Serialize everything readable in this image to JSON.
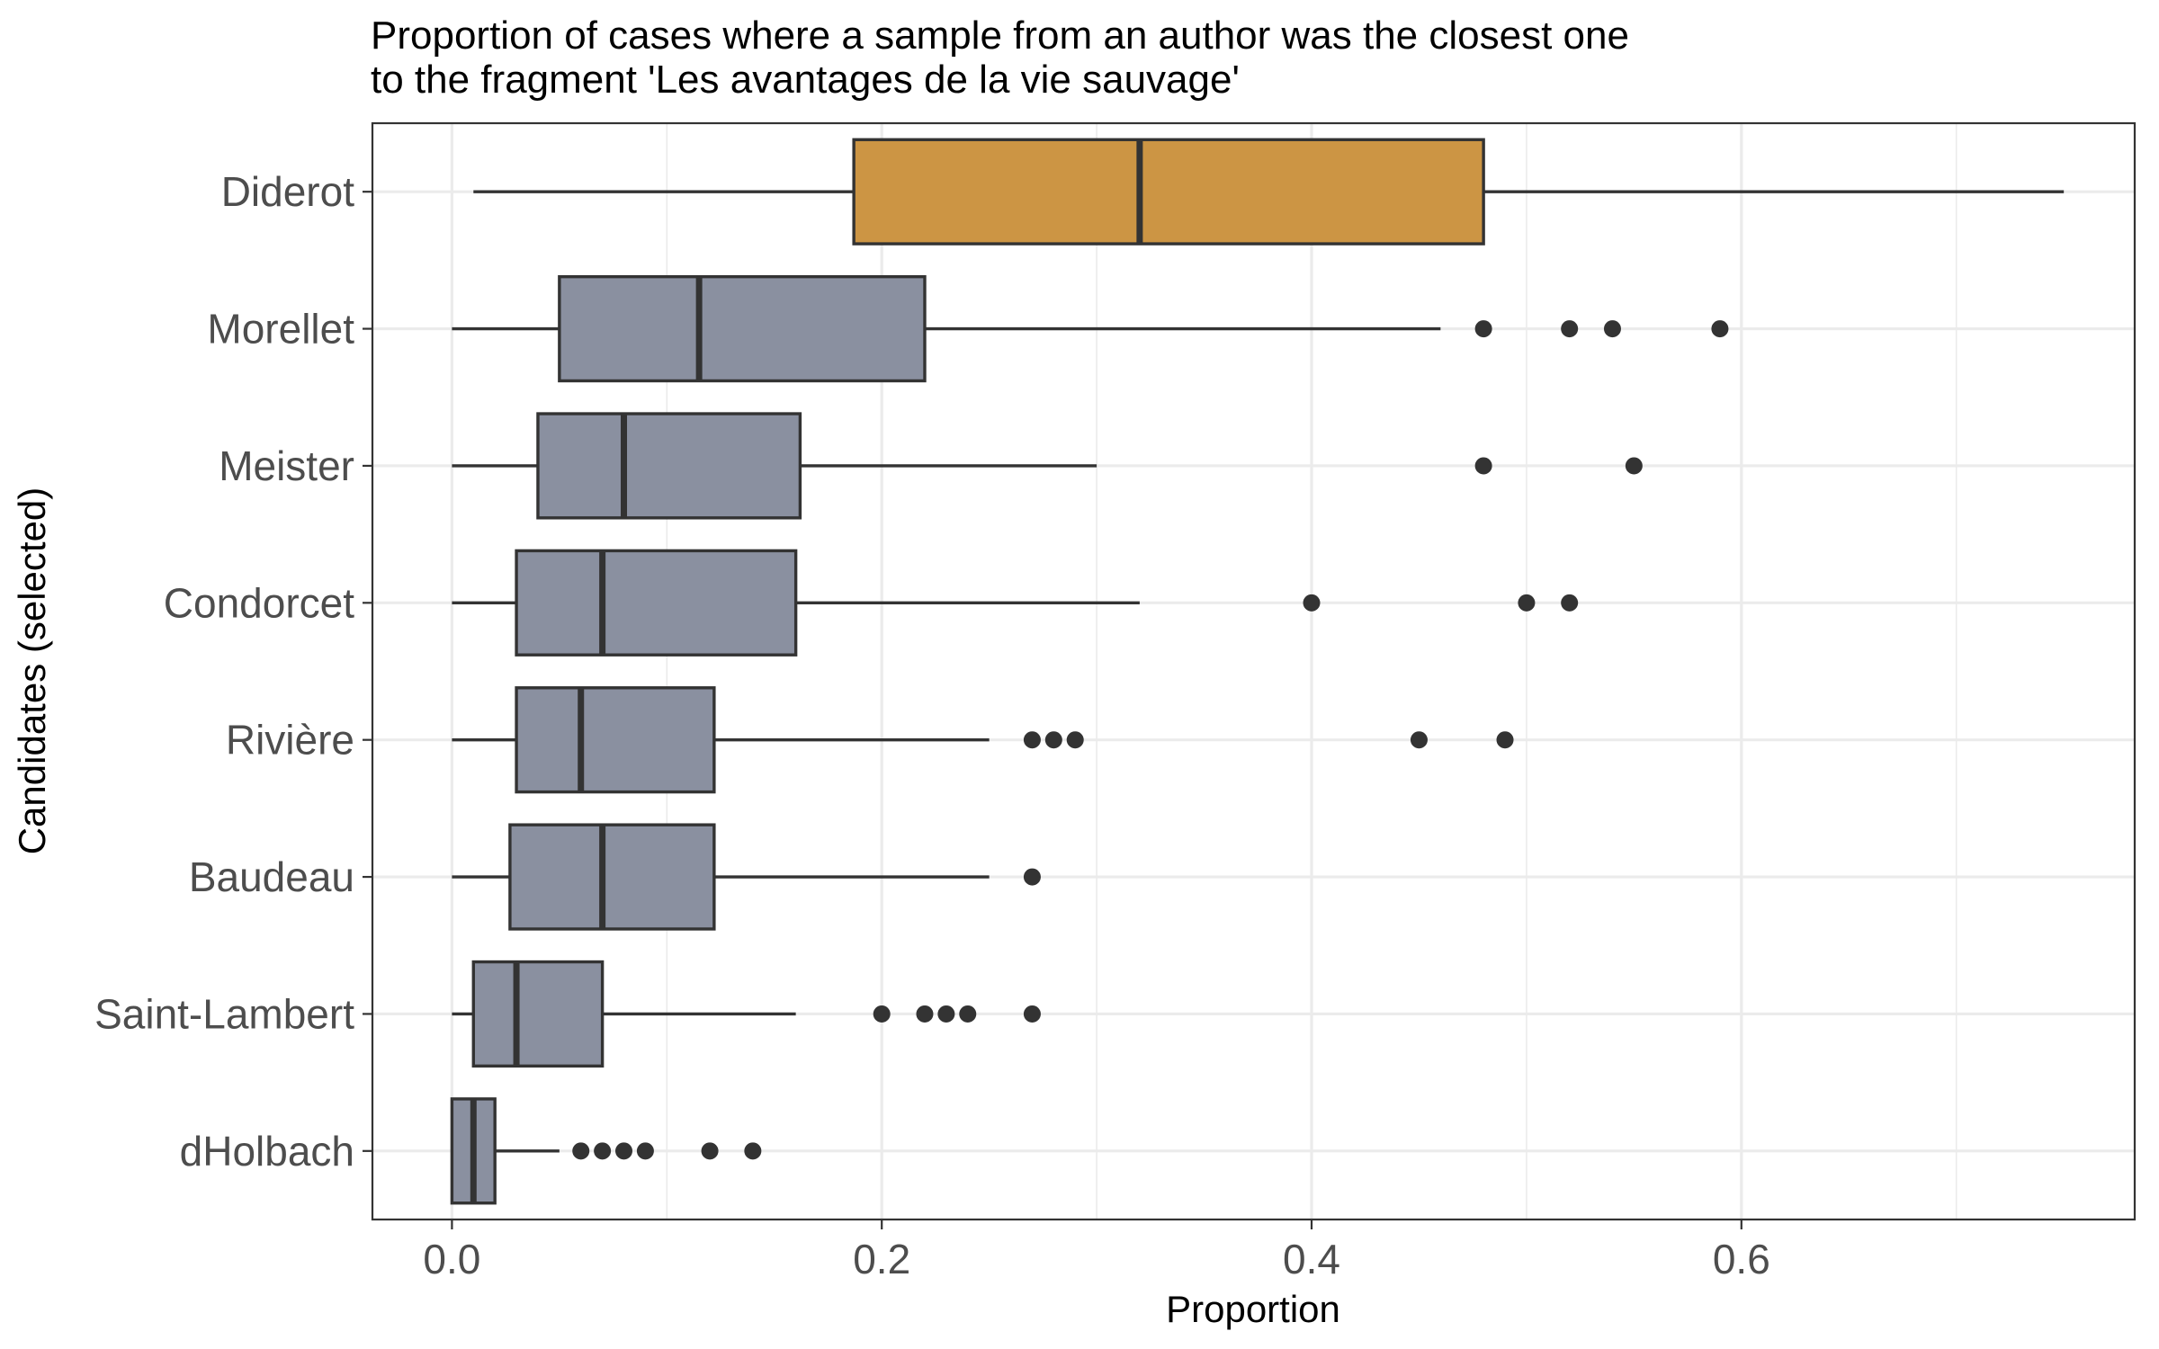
{
  "chart_data": {
    "type": "boxplot",
    "title_line1": "Proportion of cases where a sample from an author was the closest one",
    "title_line2": "to the fragment 'Les avantages de la vie sauvage'",
    "xlabel": "Proportion",
    "ylabel": "Candidates (selected)",
    "xlim": [
      -0.037,
      0.783
    ],
    "xticks": [
      0.0,
      0.2,
      0.4,
      0.6
    ],
    "xtick_labels": [
      "0.0",
      "0.2",
      "0.4",
      "0.6"
    ],
    "grid": true,
    "colors": {
      "highlight": "#cc9544",
      "default": "#8a90a0",
      "stroke": "#333333"
    },
    "series": [
      {
        "name": "Diderot",
        "highlight": true,
        "whisker_low": 0.01,
        "q1": 0.187,
        "median": 0.32,
        "q3": 0.48,
        "whisker_high": 0.75,
        "outliers": []
      },
      {
        "name": "Morellet",
        "highlight": false,
        "whisker_low": 0.0,
        "q1": 0.05,
        "median": 0.115,
        "q3": 0.22,
        "whisker_high": 0.46,
        "outliers": [
          0.48,
          0.52,
          0.54,
          0.59
        ]
      },
      {
        "name": "Meister",
        "highlight": false,
        "whisker_low": 0.0,
        "q1": 0.04,
        "median": 0.08,
        "q3": 0.162,
        "whisker_high": 0.3,
        "outliers": [
          0.48,
          0.55
        ]
      },
      {
        "name": "Condorcet",
        "highlight": false,
        "whisker_low": 0.0,
        "q1": 0.03,
        "median": 0.07,
        "q3": 0.16,
        "whisker_high": 0.32,
        "outliers": [
          0.4,
          0.5,
          0.52
        ]
      },
      {
        "name": "Rivière",
        "highlight": false,
        "whisker_low": 0.0,
        "q1": 0.03,
        "median": 0.06,
        "q3": 0.122,
        "whisker_high": 0.25,
        "outliers": [
          0.27,
          0.28,
          0.29,
          0.45,
          0.49
        ]
      },
      {
        "name": "Baudeau",
        "highlight": false,
        "whisker_low": 0.0,
        "q1": 0.027,
        "median": 0.07,
        "q3": 0.122,
        "whisker_high": 0.25,
        "outliers": [
          0.27
        ]
      },
      {
        "name": "Saint-Lambert",
        "highlight": false,
        "whisker_low": 0.0,
        "q1": 0.01,
        "median": 0.03,
        "q3": 0.07,
        "whisker_high": 0.16,
        "outliers": [
          0.2,
          0.22,
          0.23,
          0.24,
          0.27
        ]
      },
      {
        "name": "dHolbach",
        "highlight": false,
        "whisker_low": 0.0,
        "q1": 0.0,
        "median": 0.01,
        "q3": 0.02,
        "whisker_high": 0.05,
        "outliers": [
          0.06,
          0.07,
          0.08,
          0.09,
          0.12,
          0.14
        ]
      }
    ]
  }
}
